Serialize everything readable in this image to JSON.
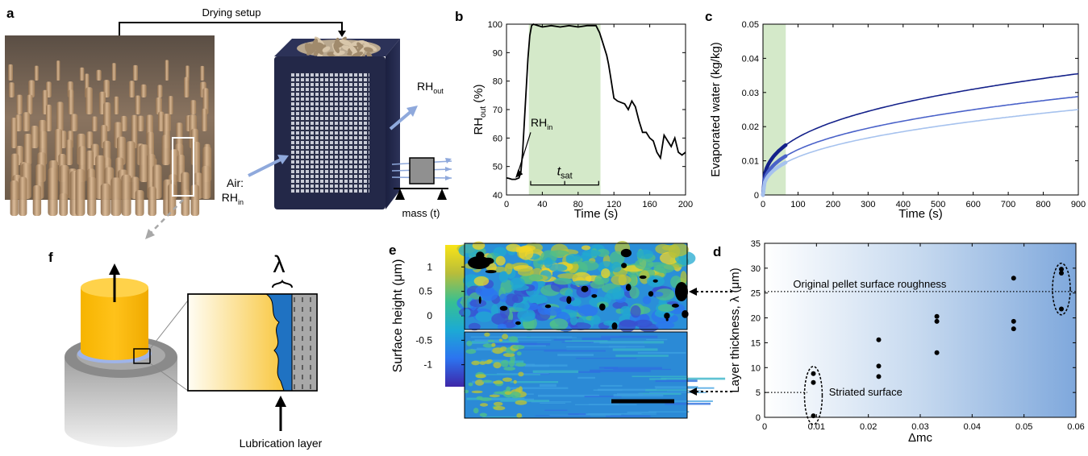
{
  "panels": {
    "a": {
      "letter": "a",
      "drying_setup_label": "Drying setup",
      "rh_out_label": "RH",
      "rh_out_sub": "out",
      "air_label": "Air:",
      "rh_in_label": "RH",
      "rh_in_sub": "in",
      "mass_label": "mass (t)"
    },
    "b": {
      "letter": "b"
    },
    "c": {
      "letter": "c"
    },
    "d": {
      "letter": "d"
    },
    "e": {
      "letter": "e",
      "colorbar_label": "Surface height (μm)",
      "colorbar_ticks": [
        "1",
        "0.5",
        "0",
        "-0.5",
        "-1"
      ]
    },
    "f": {
      "letter": "f",
      "lambda_symbol": "λ",
      "lubrication_label": "Lubrication layer"
    }
  },
  "chart_data": [
    {
      "id": "b",
      "type": "line",
      "xlabel": "Time (s)",
      "ylabel_main": "RH",
      "ylabel_sub": "out",
      "ylabel_unit": " (%)",
      "xlim": [
        0,
        200
      ],
      "ylim": [
        40,
        100
      ],
      "xticks": [
        0,
        40,
        80,
        120,
        160,
        200
      ],
      "yticks": [
        40,
        50,
        60,
        70,
        80,
        90,
        100
      ],
      "grid": false,
      "shaded_region": [
        25,
        105
      ],
      "shade_color": "#d4e9c9",
      "annotations": {
        "rh_in": "RH",
        "rh_in_sub": "in",
        "t_sat": "t",
        "t_sat_sub": "sat"
      },
      "series": [
        {
          "color": "#000000",
          "x": [
            0,
            3,
            6,
            10,
            14,
            16,
            18,
            20,
            22,
            24,
            26,
            28,
            30,
            40,
            50,
            60,
            70,
            80,
            90,
            100,
            104,
            106,
            108,
            110,
            112,
            114,
            116,
            118,
            120,
            124,
            128,
            132,
            136,
            140,
            144,
            148,
            152,
            156,
            160,
            164,
            168,
            172,
            176,
            180,
            184,
            188,
            192,
            196,
            200
          ],
          "y": [
            46,
            45.8,
            45.5,
            45.5,
            46,
            48,
            55,
            66,
            77,
            88,
            96,
            99.5,
            100,
            99,
            99.5,
            99,
            99.5,
            99,
            99.5,
            99.5,
            97,
            95,
            93,
            91,
            89,
            86,
            82,
            78,
            74,
            73,
            72.5,
            72,
            70,
            73,
            71,
            66,
            62,
            62,
            60,
            59,
            55,
            53,
            61,
            59,
            57,
            60,
            55,
            54,
            55
          ]
        }
      ]
    },
    {
      "id": "c",
      "type": "line",
      "xlabel": "Time (s)",
      "ylabel": "Evaporated water (kg/kg)",
      "xlim": [
        0,
        900
      ],
      "ylim": [
        0,
        0.05
      ],
      "xticks": [
        0,
        100,
        200,
        300,
        400,
        500,
        600,
        700,
        800,
        900
      ],
      "yticks": [
        0,
        0.01,
        0.02,
        0.03,
        0.04,
        0.05
      ],
      "ytick_labels": [
        "0",
        "0.01",
        "0.02",
        "0.03",
        "0.04",
        "0.05"
      ],
      "grid": false,
      "shaded_region": [
        0,
        65
      ],
      "shade_color": "#d4e9c9",
      "series": [
        {
          "color": "#14218a",
          "final": 0.0355,
          "at65": 0.0146
        },
        {
          "color": "#4a62c9",
          "final": 0.0288,
          "at65": 0.0114
        },
        {
          "color": "#a6c2ee",
          "final": 0.025,
          "at65": 0.0095
        }
      ]
    },
    {
      "id": "d",
      "type": "scatter",
      "xlabel": "Δmc",
      "ylabel": "Layer thickness, λ (μm)",
      "xlim": [
        0,
        0.06
      ],
      "ylim": [
        0,
        35
      ],
      "xticks": [
        0,
        0.01,
        0.02,
        0.03,
        0.04,
        0.05,
        0.06
      ],
      "xtick_labels": [
        "0",
        "0.01",
        "0.02",
        "0.03",
        "0.04",
        "0.05",
        "0.06"
      ],
      "yticks": [
        0,
        5,
        10,
        15,
        20,
        25,
        30,
        35
      ],
      "grid": false,
      "annotations": {
        "original": "Original pellet surface roughness",
        "striated": "Striated surface",
        "original_level": 25.3,
        "striated_level": 5
      },
      "points": [
        {
          "x": 0.0094,
          "y": 8.8
        },
        {
          "x": 0.0094,
          "y": 7
        },
        {
          "x": 0.0094,
          "y": 0.3
        },
        {
          "x": 0.022,
          "y": 15.6
        },
        {
          "x": 0.022,
          "y": 10.3
        },
        {
          "x": 0.022,
          "y": 8.2
        },
        {
          "x": 0.0332,
          "y": 20.3
        },
        {
          "x": 0.0332,
          "y": 19.3
        },
        {
          "x": 0.0332,
          "y": 13
        },
        {
          "x": 0.048,
          "y": 28
        },
        {
          "x": 0.048,
          "y": 19.3
        },
        {
          "x": 0.048,
          "y": 17.8
        },
        {
          "x": 0.0572,
          "y": 29.8
        },
        {
          "x": 0.0572,
          "y": 29
        },
        {
          "x": 0.0572,
          "y": 21.8
        }
      ]
    }
  ]
}
